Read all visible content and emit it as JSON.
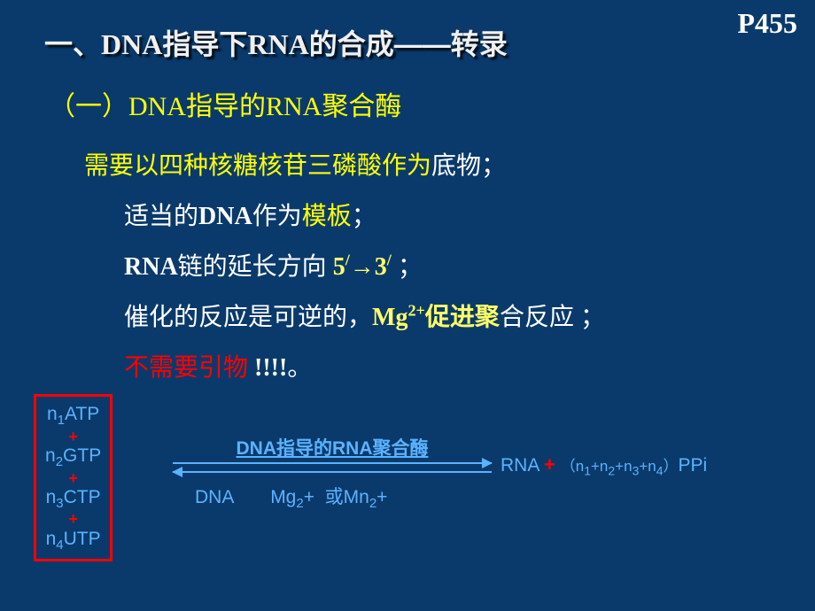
{
  "pageRef": "P455",
  "title": {
    "pre": "一、",
    "dna": "DNA",
    "mid": "指导下",
    "rna": "RNA",
    "post": "的合成——转录"
  },
  "subtitle": {
    "num": "（一）",
    "dna": "DNA",
    "mid": "指导的",
    "rna": "RNA",
    "post": "聚合酶"
  },
  "line1": {
    "a": "需要以四种核糖核苷三磷酸作为",
    "b": "底物",
    "c": "；"
  },
  "line2": {
    "a": "适当的",
    "dna": "DNA",
    "b": "作为",
    "c": "模板",
    "d": "；"
  },
  "line3": {
    "rna": "RNA",
    "a": "链的延长方向 ",
    "dir1": "5",
    "arrow": "→",
    "dir2": "3",
    "d": " ；"
  },
  "line4": {
    "a": "催化的反应是可逆的，",
    "mg": "Mg",
    "mg2": "2+",
    "b": "促进聚",
    "c": "合反应 ；"
  },
  "line5": {
    "a": "不需要引物",
    "excl": " !!!!",
    "dot": "。"
  },
  "ntp": {
    "n1": "n₁ATP",
    "n2": "n₂GTP",
    "n3": "n₃CTP",
    "n4": "n₄UTP",
    "plus": "+"
  },
  "enzyme": {
    "dna": "DNA",
    "mid": "指导的",
    "rna": "RNA",
    "post": "聚合酶"
  },
  "bottom": {
    "dna": "DNA",
    "mg": "Mg₂+  或Mn₂+"
  },
  "products": {
    "rna": "RNA ",
    "plus": "+",
    "sum": "（n₁+n₂+n₃+n₄）",
    "ppi": "PPi"
  }
}
